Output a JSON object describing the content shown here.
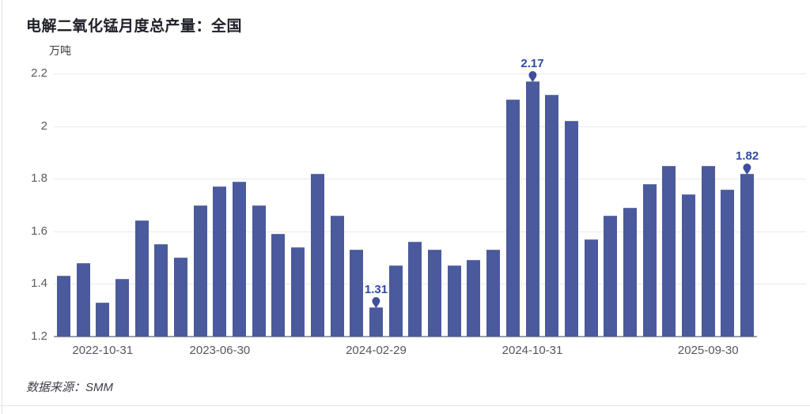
{
  "chart_data": {
    "type": "bar",
    "title": "电解二氧化锰月度总产量：全国",
    "unit_label": "万吨",
    "source": "数据来源：SMM",
    "ylim": [
      1.2,
      2.2
    ],
    "yticks": [
      "2.2",
      "2",
      "1.8",
      "1.6",
      "1.4",
      "1.2"
    ],
    "ytick_values": [
      2.2,
      2.0,
      1.8,
      1.6,
      1.4,
      1.2
    ],
    "grid": "horizontal-on",
    "legend": "none",
    "bar_color": "#4b5a9c",
    "annotation_color": "#2d4ba6",
    "values": [
      1.43,
      1.48,
      1.33,
      1.42,
      1.64,
      1.55,
      1.5,
      1.7,
      1.77,
      1.79,
      1.7,
      1.59,
      1.54,
      1.82,
      1.66,
      1.53,
      1.31,
      1.47,
      1.56,
      1.53,
      1.47,
      1.49,
      1.53,
      2.1,
      2.17,
      2.12,
      2.02,
      1.57,
      1.66,
      1.69,
      1.78,
      1.85,
      1.74,
      1.85,
      1.76,
      1.82
    ],
    "x_tick_labels": [
      {
        "index": 2,
        "label": "2022-10-31"
      },
      {
        "index": 8,
        "label": "2023-06-30"
      },
      {
        "index": 16,
        "label": "2024-02-29"
      },
      {
        "index": 24,
        "label": "2024-10-31"
      },
      {
        "index": 33,
        "label": "2025-09-30"
      }
    ],
    "annotations": [
      {
        "index": 16,
        "label": "1.31"
      },
      {
        "index": 24,
        "label": "2.17"
      },
      {
        "index": 35,
        "label": "1.82"
      }
    ]
  }
}
